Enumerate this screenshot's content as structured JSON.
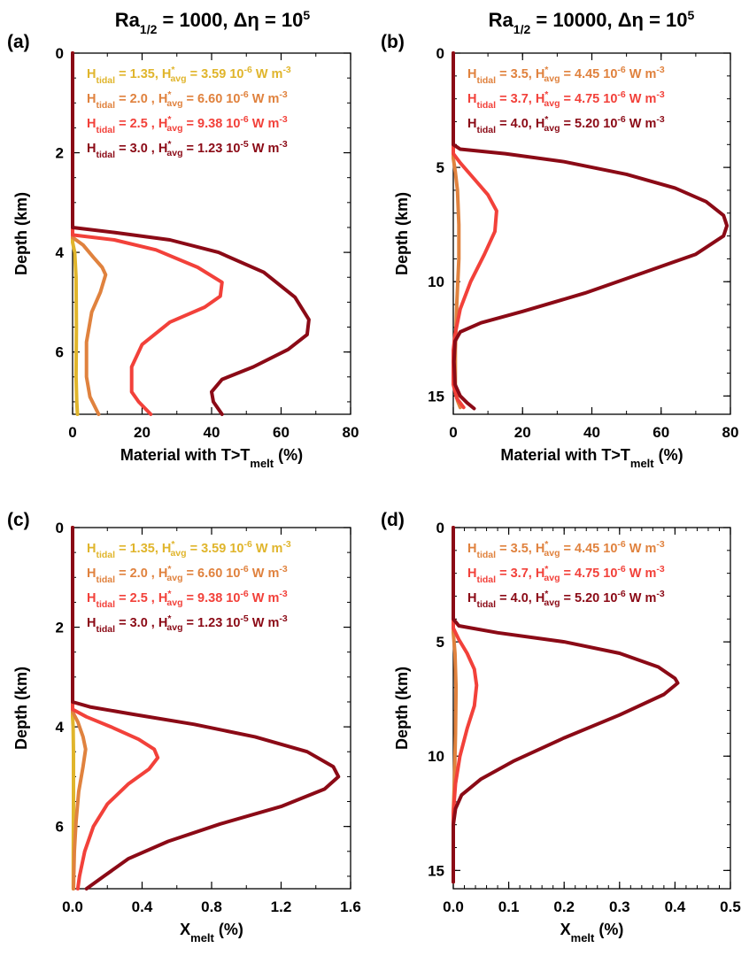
{
  "column_titles": [
    {
      "base": "Ra",
      "sub": "1/2",
      "rest": " = 1000,  Δη  = 10",
      "sup": "5"
    },
    {
      "base": "Ra",
      "sub": "1/2",
      "rest": " = 10000,  Δη  = 10",
      "sup": "5"
    }
  ],
  "colors": {
    "h135": "#E0B52C",
    "h20": "#E0823E",
    "h25": "#F2413A",
    "h30": "#8B0A16",
    "h35": "#E0823E",
    "h37": "#F2413A",
    "h40": "#8B0A16"
  },
  "chart_data": [
    {
      "panel": "(a)",
      "type": "line",
      "xlabel": {
        "base": "Material with T>T",
        "sub": "melt",
        "rest": " (%)"
      },
      "ylabel": "Depth (km)",
      "xlim": [
        0,
        80
      ],
      "ylim": [
        0,
        7.25
      ],
      "y_inverted": true,
      "xticks": [
        0,
        20,
        40,
        60,
        80
      ],
      "yticks": [
        0,
        2,
        4,
        6
      ],
      "x_minor_step": 10,
      "y_minor_step": 0.5,
      "legend_position": "top",
      "series": [
        {
          "name": "1.35",
          "label": {
            "h": "1.35, ",
            "val": "3.59 10",
            "exp": "-6",
            "unit": " W m",
            "uexp": "-3"
          },
          "color_key": "h135",
          "points": [
            [
              0,
              0
            ],
            [
              0,
              3.8
            ],
            [
              0.6,
              4.0
            ],
            [
              1.0,
              4.5
            ],
            [
              1.1,
              5.5
            ],
            [
              1.0,
              6.5
            ],
            [
              1.2,
              7.0
            ],
            [
              1.4,
              7.25
            ]
          ]
        },
        {
          "name": "2.0",
          "label": {
            "h": "2.0  , ",
            "val": "6.60 10",
            "exp": "-6",
            "unit": " W m",
            "uexp": "-3"
          },
          "color_key": "h20",
          "points": [
            [
              0,
              0
            ],
            [
              0,
              3.7
            ],
            [
              3,
              3.85
            ],
            [
              6,
              4.1
            ],
            [
              8.5,
              4.3
            ],
            [
              9.5,
              4.45
            ],
            [
              8,
              4.8
            ],
            [
              5.5,
              5.2
            ],
            [
              4,
              5.8
            ],
            [
              4,
              6.5
            ],
            [
              5,
              6.9
            ],
            [
              7.5,
              7.25
            ]
          ]
        },
        {
          "name": "2.5",
          "label": {
            "h": "2.5  , ",
            "val": "9.38 10",
            "exp": "-6",
            "unit": " W m",
            "uexp": "-3"
          },
          "color_key": "h25",
          "points": [
            [
              0,
              0
            ],
            [
              0,
              3.65
            ],
            [
              12,
              3.75
            ],
            [
              24,
              3.95
            ],
            [
              36,
              4.3
            ],
            [
              43,
              4.6
            ],
            [
              42.5,
              4.88
            ],
            [
              38,
              5.1
            ],
            [
              28,
              5.4
            ],
            [
              20,
              5.85
            ],
            [
              17,
              6.3
            ],
            [
              17,
              6.8
            ],
            [
              19,
              7.0
            ],
            [
              22.5,
              7.25
            ]
          ]
        },
        {
          "name": "3.0",
          "label": {
            "h": "3.0  , ",
            "val": "1.23 10",
            "exp": "-5",
            "unit": " W m",
            "uexp": "-3"
          },
          "color_key": "h30",
          "points": [
            [
              0,
              0
            ],
            [
              0,
              3.5
            ],
            [
              12,
              3.6
            ],
            [
              28,
              3.75
            ],
            [
              42,
              4.0
            ],
            [
              55,
              4.4
            ],
            [
              64,
              4.9
            ],
            [
              68,
              5.35
            ],
            [
              67.5,
              5.65
            ],
            [
              62,
              5.95
            ],
            [
              52,
              6.3
            ],
            [
              43,
              6.55
            ],
            [
              40,
              6.8
            ],
            [
              40.5,
              7.0
            ],
            [
              43,
              7.25
            ]
          ]
        }
      ]
    },
    {
      "panel": "(b)",
      "type": "line",
      "xlabel": {
        "base": "Material with T>T",
        "sub": "melt",
        "rest": " (%)"
      },
      "ylabel": "Depth (km)",
      "xlim": [
        0,
        80
      ],
      "ylim": [
        0,
        15.8
      ],
      "y_inverted": true,
      "xticks": [
        0,
        20,
        40,
        60,
        80
      ],
      "yticks": [
        0,
        5,
        10,
        15
      ],
      "x_minor_step": 10,
      "y_minor_step": 1,
      "legend_position": "top",
      "series": [
        {
          "name": "3.5",
          "label": {
            "h": "3.5, ",
            "val": "4.45 10",
            "exp": "-6",
            "unit": " W m",
            "uexp": "-3"
          },
          "color_key": "h35",
          "points": [
            [
              0,
              0
            ],
            [
              0,
              4.6
            ],
            [
              0.6,
              5.2
            ],
            [
              1.2,
              6.0
            ],
            [
              1.6,
              7.5
            ],
            [
              1.6,
              9.0
            ],
            [
              1.0,
              11.0
            ],
            [
              0.6,
              13.0
            ],
            [
              0.6,
              14.5
            ],
            [
              1.2,
              15.2
            ],
            [
              2.0,
              15.5
            ]
          ]
        },
        {
          "name": "3.7",
          "label": {
            "h": "3.7, ",
            "val": "4.75 10",
            "exp": "-6",
            "unit": " W m",
            "uexp": "-3"
          },
          "color_key": "h37",
          "points": [
            [
              0,
              0
            ],
            [
              0,
              4.4
            ],
            [
              2,
              4.8
            ],
            [
              6,
              5.5
            ],
            [
              10,
              6.2
            ],
            [
              12.5,
              6.9
            ],
            [
              12,
              7.8
            ],
            [
              9,
              8.8
            ],
            [
              5,
              10.0
            ],
            [
              2,
              11.2
            ],
            [
              0.5,
              12.3
            ],
            [
              0,
              13.0
            ],
            [
              0,
              14.5
            ],
            [
              1,
              15.1
            ],
            [
              3,
              15.5
            ]
          ]
        },
        {
          "name": "4.0",
          "label": {
            "h": "4.0, ",
            "val": "5.20 10",
            "exp": "-6",
            "unit": " W m",
            "uexp": "-3"
          },
          "color_key": "h40",
          "points": [
            [
              0,
              0
            ],
            [
              0,
              4.0
            ],
            [
              2,
              4.2
            ],
            [
              15,
              4.4
            ],
            [
              32,
              4.75
            ],
            [
              50,
              5.3
            ],
            [
              64,
              5.9
            ],
            [
              73,
              6.5
            ],
            [
              78,
              7.1
            ],
            [
              79,
              7.55
            ],
            [
              78,
              8.0
            ],
            [
              70,
              8.8
            ],
            [
              55,
              9.6
            ],
            [
              38,
              10.5
            ],
            [
              20,
              11.3
            ],
            [
              8,
              11.8
            ],
            [
              2,
              12.2
            ],
            [
              0.5,
              12.6
            ],
            [
              0.2,
              13.5
            ],
            [
              0.5,
              14.5
            ],
            [
              2,
              15.0
            ],
            [
              4,
              15.3
            ],
            [
              6,
              15.55
            ]
          ]
        }
      ]
    },
    {
      "panel": "(c)",
      "type": "line",
      "xlabel": {
        "base": "X",
        "sub": "melt",
        "rest": " (%)"
      },
      "ylabel": "Depth (km)",
      "xlim": [
        0,
        1.6
      ],
      "ylim": [
        0,
        7.25
      ],
      "y_inverted": true,
      "xticks": [
        0.0,
        0.4,
        0.8,
        1.2,
        1.6
      ],
      "xtick_labels": [
        "0.0",
        "0.4",
        "0.8",
        "1.2",
        "1.6"
      ],
      "yticks": [
        0,
        2,
        4,
        6
      ],
      "x_minor_step": 0.2,
      "y_minor_step": 0.5,
      "legend_position": "top",
      "series": [
        {
          "name": "1.35",
          "label": {
            "h": "1.35, ",
            "val": "3.59 10",
            "exp": "-6",
            "unit": " W m",
            "uexp": "-3"
          },
          "color_key": "h135",
          "points": [
            [
              0,
              0
            ],
            [
              0,
              3.8
            ],
            [
              0.003,
              4.0
            ],
            [
              0.005,
              4.5
            ],
            [
              0.005,
              5.5
            ],
            [
              0.004,
              6.5
            ],
            [
              0.004,
              7.25
            ]
          ]
        },
        {
          "name": "2.0",
          "label": {
            "h": "2.0  , ",
            "val": "6.60 10",
            "exp": "-6",
            "unit": " W m",
            "uexp": "-3"
          },
          "color_key": "h20",
          "points": [
            [
              0,
              0
            ],
            [
              0,
              3.7
            ],
            [
              0.03,
              3.9
            ],
            [
              0.06,
              4.2
            ],
            [
              0.075,
              4.45
            ],
            [
              0.06,
              4.8
            ],
            [
              0.035,
              5.3
            ],
            [
              0.02,
              5.9
            ],
            [
              0.01,
              6.5
            ],
            [
              0.005,
              7.25
            ]
          ]
        },
        {
          "name": "2.5",
          "label": {
            "h": "2.5  , ",
            "val": "9.38 10",
            "exp": "-6",
            "unit": " W m",
            "uexp": "-3"
          },
          "color_key": "h25",
          "points": [
            [
              0,
              0
            ],
            [
              0,
              3.65
            ],
            [
              0.08,
              3.8
            ],
            [
              0.22,
              4.0
            ],
            [
              0.38,
              4.25
            ],
            [
              0.47,
              4.45
            ],
            [
              0.49,
              4.62
            ],
            [
              0.44,
              4.85
            ],
            [
              0.32,
              5.15
            ],
            [
              0.2,
              5.55
            ],
            [
              0.12,
              6.0
            ],
            [
              0.07,
              6.5
            ],
            [
              0.04,
              7.0
            ],
            [
              0.03,
              7.25
            ]
          ]
        },
        {
          "name": "3.0",
          "label": {
            "h": "3.0  , ",
            "val": "1.23 10",
            "exp": "-5",
            "unit": " W m",
            "uexp": "-3"
          },
          "color_key": "h30",
          "points": [
            [
              0,
              0
            ],
            [
              0,
              3.5
            ],
            [
              0.1,
              3.6
            ],
            [
              0.35,
              3.75
            ],
            [
              0.7,
              3.95
            ],
            [
              1.05,
              4.2
            ],
            [
              1.35,
              4.5
            ],
            [
              1.5,
              4.8
            ],
            [
              1.53,
              5.0
            ],
            [
              1.45,
              5.25
            ],
            [
              1.2,
              5.6
            ],
            [
              0.85,
              5.95
            ],
            [
              0.55,
              6.3
            ],
            [
              0.32,
              6.65
            ],
            [
              0.18,
              7.0
            ],
            [
              0.08,
              7.25
            ]
          ]
        }
      ]
    },
    {
      "panel": "(d)",
      "type": "line",
      "xlabel": {
        "base": "X",
        "sub": "melt",
        "rest": " (%)"
      },
      "ylabel": "Depth (km)",
      "xlim": [
        0,
        0.5
      ],
      "ylim": [
        0,
        15.8
      ],
      "y_inverted": true,
      "xticks": [
        0.0,
        0.1,
        0.2,
        0.3,
        0.4,
        0.5
      ],
      "xtick_labels": [
        "0.0",
        "0.1",
        "0.2",
        "0.3",
        "0.4",
        "0.5"
      ],
      "yticks": [
        0,
        5,
        10,
        15
      ],
      "x_minor_step": 0.02,
      "y_minor_step": 1,
      "legend_position": "top",
      "series": [
        {
          "name": "3.5",
          "label": {
            "h": "3.5, ",
            "val": "4.45 10",
            "exp": "-6",
            "unit": " W m",
            "uexp": "-3"
          },
          "color_key": "h35",
          "points": [
            [
              0,
              0
            ],
            [
              0,
              4.6
            ],
            [
              0.003,
              5.5
            ],
            [
              0.005,
              7.0
            ],
            [
              0.004,
              9.0
            ],
            [
              0.002,
              11.0
            ],
            [
              0,
              12.5
            ],
            [
              0,
              15.5
            ]
          ]
        },
        {
          "name": "3.7",
          "label": {
            "h": "3.7, ",
            "val": "4.75 10",
            "exp": "-6",
            "unit": " W m",
            "uexp": "-3"
          },
          "color_key": "h37",
          "points": [
            [
              0,
              0
            ],
            [
              0,
              4.4
            ],
            [
              0.01,
              4.9
            ],
            [
              0.025,
              5.5
            ],
            [
              0.038,
              6.2
            ],
            [
              0.042,
              6.9
            ],
            [
              0.038,
              7.8
            ],
            [
              0.025,
              8.8
            ],
            [
              0.012,
              10.0
            ],
            [
              0.004,
              11.2
            ],
            [
              0,
              12.5
            ],
            [
              0,
              15.5
            ]
          ]
        },
        {
          "name": "4.0",
          "label": {
            "h": "4.0, ",
            "val": "5.20 10",
            "exp": "-6",
            "unit": " W m",
            "uexp": "-3"
          },
          "color_key": "h40",
          "points": [
            [
              0,
              0
            ],
            [
              0,
              4.0
            ],
            [
              0.01,
              4.3
            ],
            [
              0.08,
              4.6
            ],
            [
              0.2,
              5.0
            ],
            [
              0.3,
              5.5
            ],
            [
              0.37,
              6.1
            ],
            [
              0.4,
              6.6
            ],
            [
              0.405,
              6.8
            ],
            [
              0.38,
              7.3
            ],
            [
              0.3,
              8.2
            ],
            [
              0.2,
              9.2
            ],
            [
              0.11,
              10.2
            ],
            [
              0.05,
              11.0
            ],
            [
              0.015,
              11.7
            ],
            [
              0.004,
              12.3
            ],
            [
              0,
              13.0
            ],
            [
              0,
              15.5
            ]
          ]
        }
      ]
    }
  ]
}
